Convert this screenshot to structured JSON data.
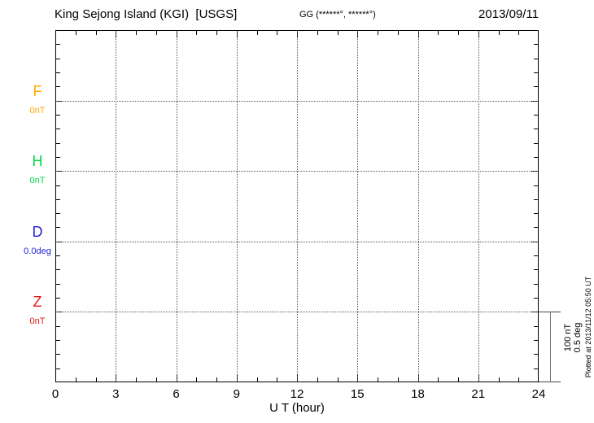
{
  "header": {
    "station_title": "King Sejong Island (KGI)  [USGS]",
    "geographic_coords": "GG (******°, ******°)",
    "date": "2013/09/11"
  },
  "chart": {
    "x_axis": {
      "title": "U T (hour)",
      "tick_labels": [
        "0",
        "3",
        "6",
        "9",
        "12",
        "15",
        "18",
        "21",
        "24"
      ]
    },
    "components": [
      {
        "label": "F",
        "value": "0nT",
        "color": "#ffaa00"
      },
      {
        "label": "H",
        "value": "0nT",
        "color": "#00dd44"
      },
      {
        "label": "D",
        "value": "0.0deg",
        "color": "#2424d9"
      },
      {
        "label": "Z",
        "value": "0nT",
        "color": "#e81414"
      }
    ],
    "scale_bar": {
      "line1": "100 nT",
      "line2": "0.5 deg"
    },
    "footnote": "Plotted at 2013/11/12 05:50 UT"
  },
  "chart_data": {
    "type": "line",
    "title": "King Sejong Island (KGI)  [USGS]",
    "subtitle": "GG (******°, ******°)",
    "date": "2013/09/11",
    "xlabel": "U T (hour)",
    "x_range": [
      0,
      24
    ],
    "x_major_ticks": [
      0,
      3,
      6,
      9,
      12,
      15,
      18,
      21,
      24
    ],
    "x_minor_tick_interval_hours": 1,
    "grid": "dotted vertical lines every 3 hours; dotted horizontal baseline per component",
    "series": [
      {
        "name": "F",
        "unit": "nT",
        "baseline_label": "0nT",
        "color": "#ffaa00",
        "values": []
      },
      {
        "name": "H",
        "unit": "nT",
        "baseline_label": "0nT",
        "color": "#00dd44",
        "values": []
      },
      {
        "name": "D",
        "unit": "deg",
        "baseline_label": "0.0deg",
        "color": "#2424d9",
        "values": []
      },
      {
        "name": "Z",
        "unit": "nT",
        "baseline_label": "0nT",
        "color": "#e81414",
        "values": []
      }
    ],
    "scale_bar": [
      "100 nT",
      "0.5 deg"
    ],
    "note": "Empty magnetogram grid — no data traces plotted for this day",
    "footnote": "Plotted at 2013/11/12 05:50 UT"
  }
}
